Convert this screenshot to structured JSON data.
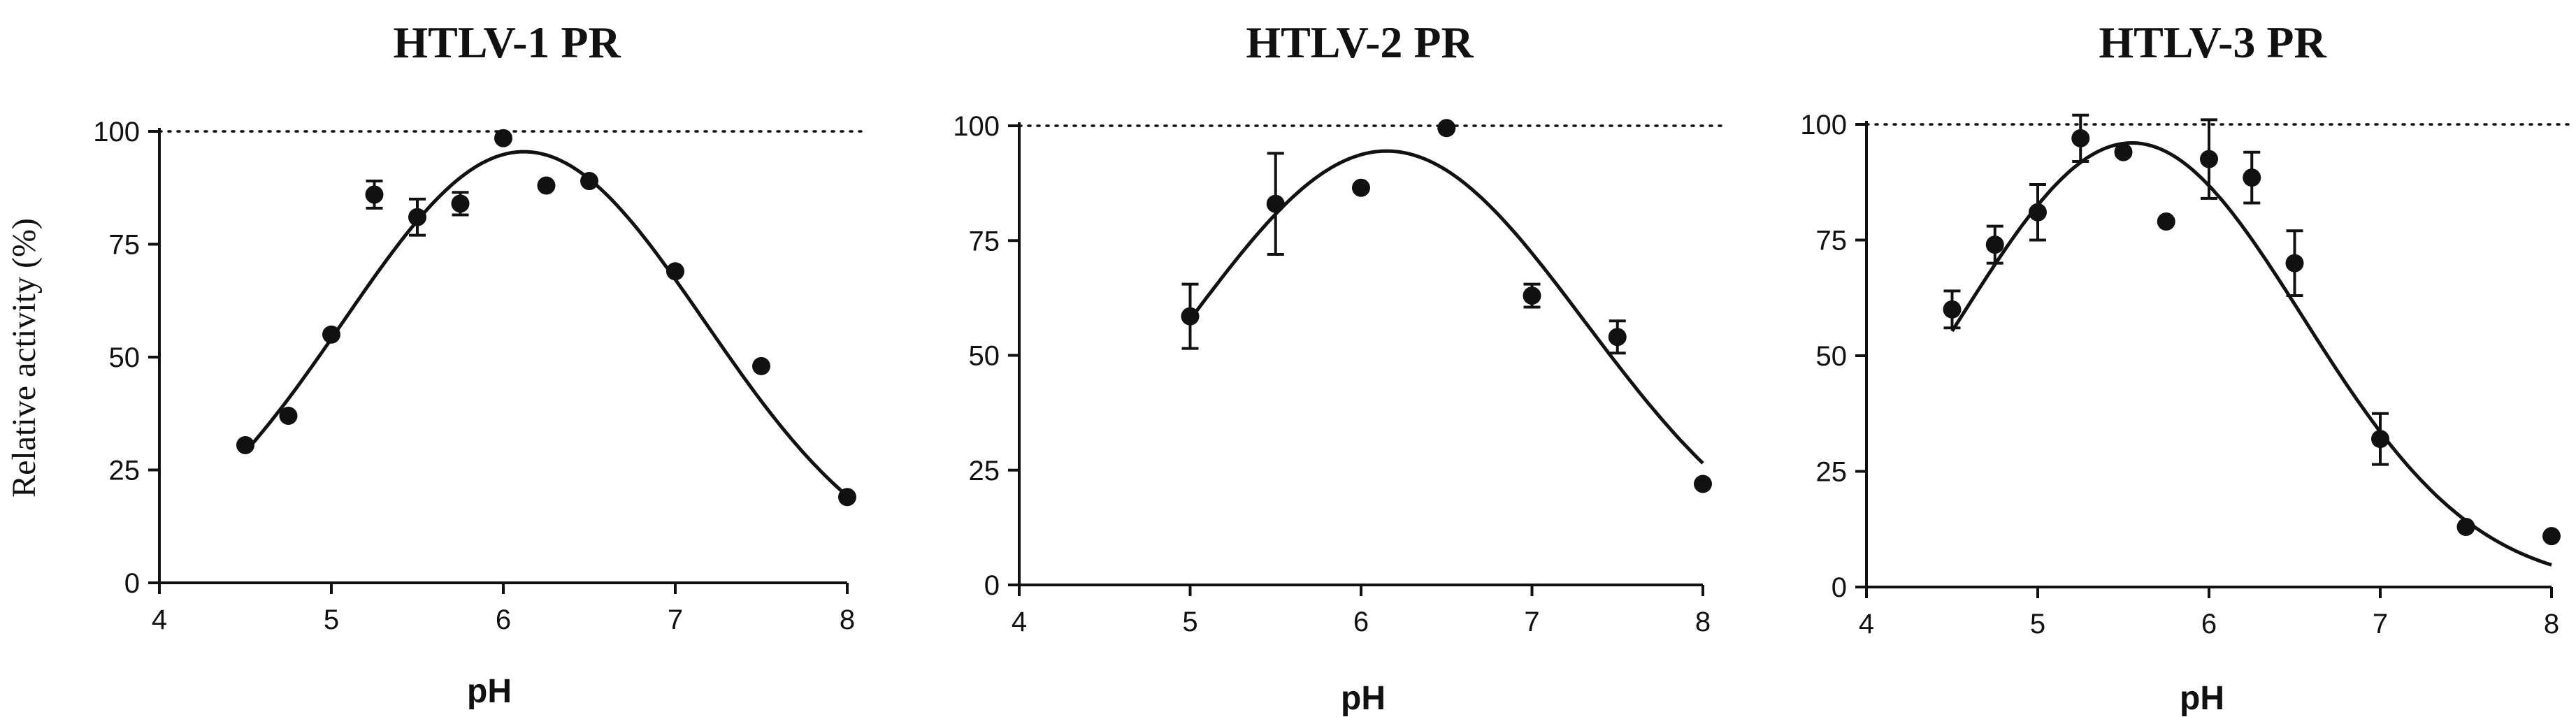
{
  "figure": {
    "ylabel": "Relative activity (%)"
  },
  "chart_data": [
    {
      "type": "scatter",
      "title": "HTLV-1 PR",
      "xlabel": "pH",
      "ylabel": "Relative activity (%)",
      "xlim": [
        4,
        8
      ],
      "ylim": [
        0,
        100
      ],
      "xticks": [
        "4",
        "5",
        "6",
        "7",
        "8"
      ],
      "yticks": [
        "0",
        "25",
        "50",
        "75",
        "100"
      ],
      "reference_line": 100,
      "grid": false,
      "points": [
        {
          "x": 4.5,
          "y": 30.5,
          "err": 0
        },
        {
          "x": 4.75,
          "y": 37,
          "err": 0
        },
        {
          "x": 5.0,
          "y": 55,
          "err": 0
        },
        {
          "x": 5.25,
          "y": 86,
          "err": 3
        },
        {
          "x": 5.5,
          "y": 81,
          "err": 4
        },
        {
          "x": 5.75,
          "y": 84,
          "err": 2.5
        },
        {
          "x": 6.0,
          "y": 98.5,
          "err": 0
        },
        {
          "x": 6.25,
          "y": 88,
          "err": 0
        },
        {
          "x": 6.5,
          "y": 89,
          "err": 0
        },
        {
          "x": 7.0,
          "y": 69,
          "err": 0
        },
        {
          "x": 7.5,
          "y": 48,
          "err": 0
        },
        {
          "x": 8.0,
          "y": 19,
          "err": 0
        }
      ],
      "fit": {
        "peak_x": 6.12,
        "peak_y": 95.5,
        "sigma": 1.05
      }
    },
    {
      "type": "scatter",
      "title": "HTLV-2 PR",
      "xlabel": "pH",
      "ylabel": "",
      "xlim": [
        4,
        8
      ],
      "ylim": [
        0,
        100
      ],
      "xticks": [
        "4",
        "5",
        "6",
        "7",
        "8"
      ],
      "yticks": [
        "0",
        "25",
        "50",
        "75",
        "100"
      ],
      "reference_line": 100,
      "grid": false,
      "points": [
        {
          "x": 5.0,
          "y": 58.5,
          "err": 7
        },
        {
          "x": 5.5,
          "y": 83,
          "err": 11
        },
        {
          "x": 6.0,
          "y": 86.5,
          "err": 0
        },
        {
          "x": 6.5,
          "y": 99.5,
          "err": 0
        },
        {
          "x": 7.0,
          "y": 63,
          "err": 2.5
        },
        {
          "x": 7.5,
          "y": 54,
          "err": 3.5
        },
        {
          "x": 8.0,
          "y": 22,
          "err": 0
        }
      ],
      "fit": {
        "peak_x": 6.15,
        "peak_y": 94.5,
        "sigma": 1.16
      }
    },
    {
      "type": "scatter",
      "title": "HTLV-3 PR",
      "xlabel": "pH",
      "ylabel": "",
      "xlim": [
        4,
        8
      ],
      "ylim": [
        0,
        100
      ],
      "xticks": [
        "4",
        "5",
        "6",
        "7",
        "8"
      ],
      "yticks": [
        "0",
        "25",
        "50",
        "75",
        "100"
      ],
      "reference_line": 100,
      "grid": false,
      "points": [
        {
          "x": 4.5,
          "y": 60,
          "err": 4
        },
        {
          "x": 4.75,
          "y": 74,
          "err": 4
        },
        {
          "x": 5.0,
          "y": 81,
          "err": 6
        },
        {
          "x": 5.25,
          "y": 97,
          "err": 5
        },
        {
          "x": 5.5,
          "y": 94,
          "err": 0
        },
        {
          "x": 5.75,
          "y": 79,
          "err": 0
        },
        {
          "x": 6.0,
          "y": 92.5,
          "err": 8.5
        },
        {
          "x": 6.25,
          "y": 88.5,
          "err": 5.5
        },
        {
          "x": 6.5,
          "y": 70,
          "err": 7
        },
        {
          "x": 7.0,
          "y": 32,
          "err": 5.5
        },
        {
          "x": 7.5,
          "y": 13,
          "err": 0
        },
        {
          "x": 8.0,
          "y": 11,
          "err": 0
        }
      ],
      "fit": {
        "peak_x": 5.55,
        "peak_y": 96,
        "sigma": 1.0
      }
    }
  ]
}
